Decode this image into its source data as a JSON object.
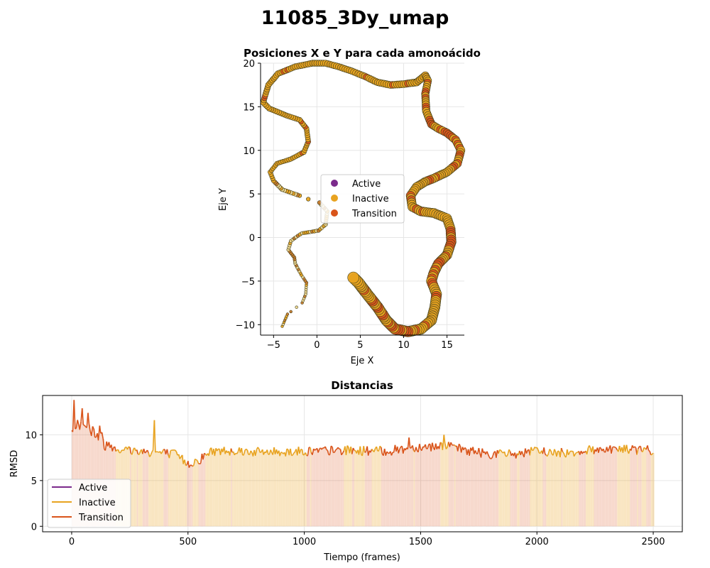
{
  "figure": {
    "title": "11085_3Dy_umap"
  },
  "chart_data": [
    {
      "type": "scatter",
      "title": "Posiciones X e Y para cada amonoácido",
      "xlabel": "Eje X",
      "ylabel": "Eje Y",
      "xlim": [
        -6.5,
        17
      ],
      "ylim": [
        -11.2,
        20
      ],
      "xticks": [
        -5,
        0,
        5,
        10,
        15
      ],
      "yticks": [
        -10,
        -5,
        0,
        5,
        10,
        15,
        20
      ],
      "grid": true,
      "legend_position": "center",
      "legend": [
        {
          "label": "Active",
          "color": "#7b2a8b"
        },
        {
          "label": "Inactive",
          "color": "#e8a320"
        },
        {
          "label": "Transition",
          "color": "#d9541a"
        }
      ],
      "point_edge_color": "#3a3a1a",
      "path": [
        [
          -4.0,
          -10.2
        ],
        [
          -3.4,
          -8.8
        ],
        [
          -3.0,
          -8.5
        ],
        [
          -1.7,
          -7.5
        ],
        [
          -1.3,
          -6.5
        ],
        [
          -1.2,
          -5.2
        ],
        [
          -1.8,
          -4.3
        ],
        [
          -2.5,
          -3.0
        ],
        [
          -2.6,
          -2.3
        ],
        [
          -3.3,
          -1.4
        ],
        [
          -3.0,
          -0.4
        ],
        [
          -2.2,
          0.2
        ],
        [
          -1.7,
          0.5
        ],
        [
          -1.0,
          0.6
        ],
        [
          0.2,
          0.8
        ],
        [
          1.0,
          1.5
        ],
        [
          1.2,
          3.0
        ],
        [
          0.3,
          4.0
        ],
        [
          -1.0,
          4.4
        ],
        [
          -2.0,
          4.8
        ],
        [
          -4.0,
          5.5
        ],
        [
          -5.0,
          6.5
        ],
        [
          -5.4,
          7.5
        ],
        [
          -4.6,
          8.5
        ],
        [
          -3.0,
          9.0
        ],
        [
          -1.5,
          9.8
        ],
        [
          -1.0,
          11.0
        ],
        [
          -1.2,
          12.5
        ],
        [
          -2.0,
          13.5
        ],
        [
          -3.5,
          14.0
        ],
        [
          -5.5,
          14.8
        ],
        [
          -6.2,
          15.5
        ],
        [
          -5.6,
          17.5
        ],
        [
          -4.5,
          18.8
        ],
        [
          -2.5,
          19.6
        ],
        [
          -0.5,
          20.0
        ],
        [
          1.0,
          20.0
        ],
        [
          2.5,
          19.6
        ],
        [
          4.0,
          19.1
        ],
        [
          5.5,
          18.5
        ],
        [
          7.0,
          17.8
        ],
        [
          8.5,
          17.5
        ],
        [
          10.0,
          17.6
        ],
        [
          11.5,
          17.8
        ],
        [
          12.5,
          18.6
        ],
        [
          12.8,
          18.0
        ],
        [
          12.5,
          16.5
        ],
        [
          12.6,
          14.5
        ],
        [
          13.2,
          13.0
        ],
        [
          14.0,
          12.5
        ],
        [
          15.0,
          12.0
        ],
        [
          16.0,
          11.2
        ],
        [
          16.6,
          10.0
        ],
        [
          16.2,
          8.5
        ],
        [
          15.0,
          7.5
        ],
        [
          13.5,
          6.8
        ],
        [
          12.5,
          6.4
        ],
        [
          11.5,
          5.8
        ],
        [
          10.8,
          4.8
        ],
        [
          11.0,
          3.5
        ],
        [
          12.0,
          3.0
        ],
        [
          13.5,
          2.8
        ],
        [
          15.0,
          2.2
        ],
        [
          15.4,
          1.0
        ],
        [
          15.5,
          -0.5
        ],
        [
          15.0,
          -2.0
        ],
        [
          14.0,
          -3.0
        ],
        [
          13.5,
          -4.0
        ],
        [
          13.2,
          -5.0
        ],
        [
          13.8,
          -6.5
        ],
        [
          13.6,
          -8.0
        ],
        [
          13.2,
          -9.5
        ],
        [
          12.0,
          -10.5
        ],
        [
          10.5,
          -10.8
        ],
        [
          9.0,
          -10.5
        ],
        [
          8.0,
          -9.5
        ],
        [
          7.0,
          -8.0
        ],
        [
          5.8,
          -6.5
        ],
        [
          4.8,
          -5.2
        ],
        [
          4.2,
          -4.6
        ]
      ]
    },
    {
      "type": "line",
      "title": "Distancias",
      "xlabel": "Tiempo (frames)",
      "ylabel": "RMSD",
      "xlim": [
        -125,
        2625
      ],
      "ylim": [
        -0.6,
        14.3
      ],
      "xticks": [
        0,
        500,
        1000,
        1500,
        2000,
        2500
      ],
      "yticks": [
        0,
        5,
        10
      ],
      "grid": true,
      "legend_position": "lower left",
      "series": [
        {
          "name": "Active",
          "color": "#7b2a8b"
        },
        {
          "name": "Inactive",
          "color": "#e8a320"
        },
        {
          "name": "Transition",
          "color": "#d9541a"
        }
      ],
      "n_frames": 2500,
      "trend": [
        [
          0,
          10.5
        ],
        [
          20,
          11.5
        ],
        [
          60,
          11.2
        ],
        [
          100,
          10.2
        ],
        [
          150,
          9.0
        ],
        [
          200,
          8.5
        ],
        [
          250,
          8.3
        ],
        [
          300,
          8.2
        ],
        [
          400,
          8.0
        ],
        [
          450,
          7.8
        ],
        [
          500,
          6.8
        ],
        [
          550,
          7.3
        ],
        [
          600,
          8.2
        ],
        [
          700,
          8.3
        ],
        [
          800,
          8.1
        ],
        [
          1000,
          8.2
        ],
        [
          1200,
          8.3
        ],
        [
          1350,
          8.2
        ],
        [
          1500,
          8.7
        ],
        [
          1600,
          8.8
        ],
        [
          1700,
          8.3
        ],
        [
          1800,
          7.9
        ],
        [
          1900,
          7.9
        ],
        [
          2000,
          8.2
        ],
        [
          2100,
          8.0
        ],
        [
          2300,
          8.5
        ],
        [
          2500,
          8.3
        ]
      ],
      "spikes": [
        [
          10,
          13.8
        ],
        [
          45,
          12.9
        ],
        [
          70,
          12.4
        ],
        [
          120,
          11.0
        ],
        [
          355,
          11.6
        ],
        [
          1450,
          9.7
        ],
        [
          1600,
          10.0
        ]
      ]
    }
  ]
}
